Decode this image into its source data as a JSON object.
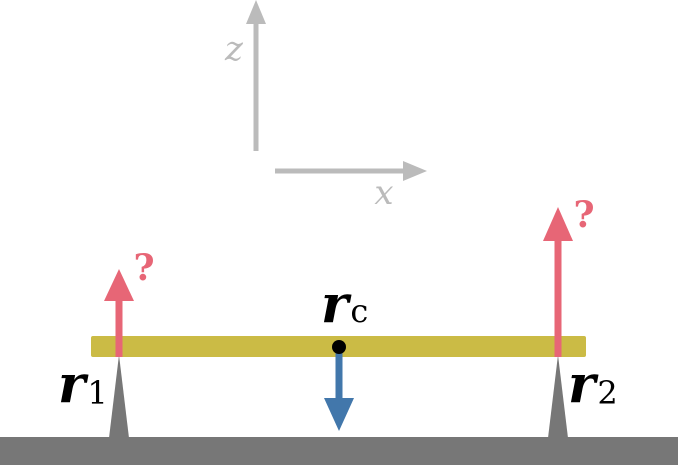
{
  "colors": {
    "axis": "#bbbbbb",
    "beam": "#cbbb45",
    "ground": "#777777",
    "support": "#777777",
    "reaction_force": "#e76676",
    "weight_force": "#4277ab",
    "label": "#000000",
    "center_point": "#000000"
  },
  "axes": {
    "z_label": "z",
    "x_label": "x"
  },
  "labels": {
    "r1_base": "r",
    "r1_sub": "1",
    "r2_base": "r",
    "r2_sub": "2",
    "rc_base": "r",
    "rc_sub": "c",
    "force1_unknown": "?",
    "force2_unknown": "?"
  }
}
